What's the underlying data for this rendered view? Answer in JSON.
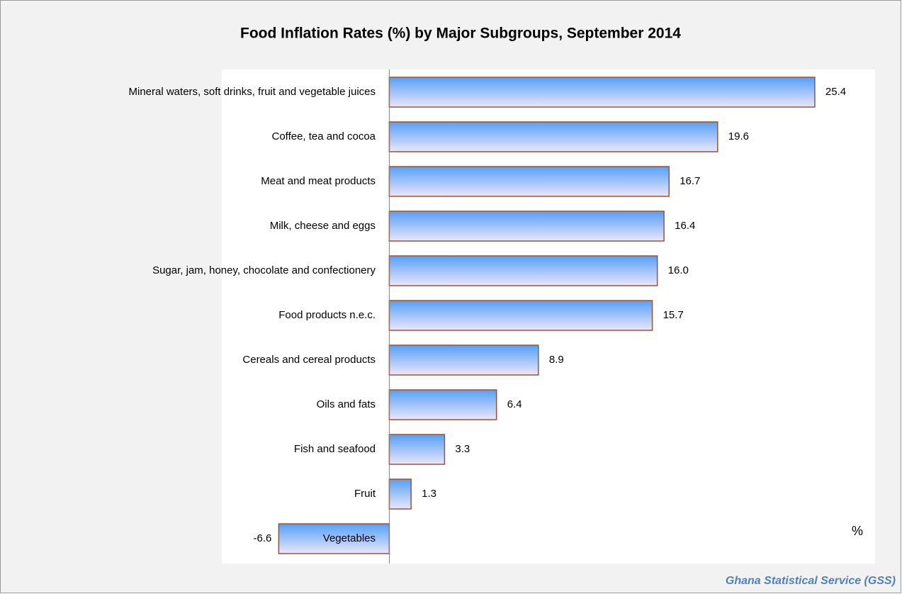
{
  "chart_data": {
    "type": "barh",
    "title": "Food Inflation Rates (%) by  Major Subgroups, September 2014",
    "xlabel": "%",
    "source": "Ghana Statistical Service (GSS)",
    "categories": [
      "Mineral waters, soft drinks, fruit and vegetable juices",
      "Coffee, tea and cocoa",
      "Meat and meat products",
      "Milk, cheese and eggs",
      "Sugar, jam, honey, chocolate and confectionery",
      "Food products n.e.c.",
      "Cereals and cereal products",
      "Oils and fats",
      "Fish and seafood",
      "Fruit",
      "Vegetables"
    ],
    "values": [
      25.4,
      19.6,
      16.7,
      16.4,
      16.0,
      15.7,
      8.9,
      6.4,
      3.3,
      1.3,
      -6.6
    ],
    "value_labels": [
      "25.4",
      "19.6",
      "16.7",
      "16.4",
      "16.0",
      "15.7",
      "8.9",
      "6.4",
      "3.3",
      "1.3",
      "-6.6"
    ],
    "xlim": [
      -10,
      29
    ],
    "color": [
      "#55a0f8",
      "#ece6f8"
    ],
    "edgecolor": "#a0522d"
  }
}
